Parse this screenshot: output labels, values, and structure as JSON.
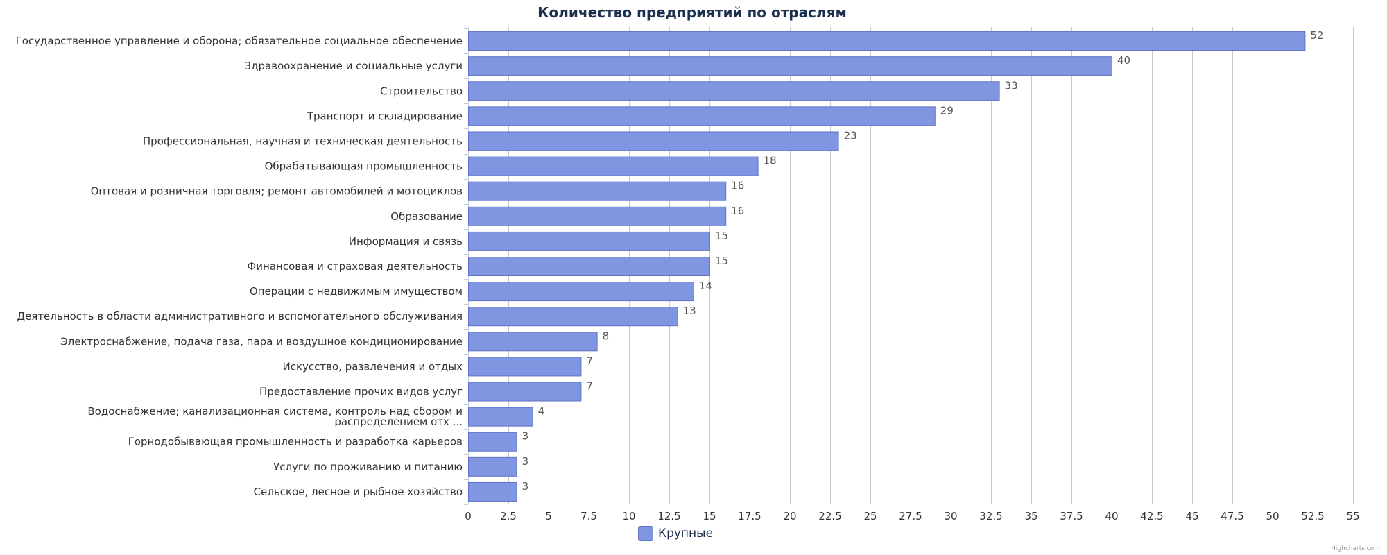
{
  "chart_data": {
    "type": "bar",
    "orientation": "horizontal",
    "title": "Количество предприятий по отраслям",
    "categories": [
      "Государственное управление и оборона; обязательное социальное обеспечение",
      "Здравоохранение и социальные услуги",
      "Строительство",
      "Транспорт и складирование",
      "Профессиональная, научная и техническая деятельность",
      "Обрабатывающая промышленность",
      "Оптовая и розничная торговля; ремонт автомобилей и мотоциклов",
      "Образование",
      "Информация и связь",
      "Финансовая и страховая деятельность",
      "Операции с недвижимым имуществом",
      "Деятельность в области административного и вспомогательного обслуживания",
      "Электроснабжение, подача газа, пара и воздушное кондиционирование",
      "Искусство, развлечения и отдых",
      "Предоставление прочих видов услуг",
      "Водоснабжение; канализационная система, контроль над сбором и распределением отх ...",
      "Горнодобывающая промышленность и разработка карьеров",
      "Услуги по проживанию и питанию",
      "Сельское, лесное и рыбное хозяйство"
    ],
    "series": [
      {
        "name": "Крупные",
        "color": "#8096e0",
        "values": [
          52,
          40,
          33,
          29,
          23,
          18,
          16,
          16,
          15,
          15,
          14,
          13,
          8,
          7,
          7,
          4,
          3,
          3,
          3
        ]
      }
    ],
    "x_ticks": [
      "0",
      "2.5",
      "5",
      "7.5",
      "10",
      "12.5",
      "15",
      "17.5",
      "20",
      "22.5",
      "25",
      "27.5",
      "30",
      "32.5",
      "35",
      "37.5",
      "40",
      "42.5",
      "45",
      "47.5",
      "50",
      "52.5",
      "55"
    ],
    "xlim": [
      0,
      55
    ],
    "grid": true,
    "legend_position": "bottom-center"
  },
  "credits": "Highcharts.com"
}
